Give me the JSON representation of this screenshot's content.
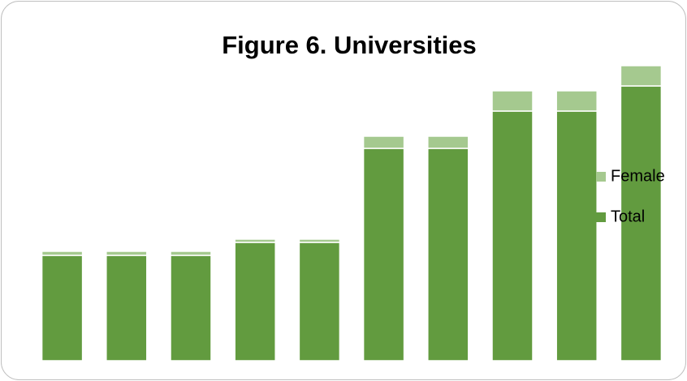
{
  "chart_data": {
    "type": "stacked-bar",
    "title": "Figure 6. Universities",
    "categories": [
      null,
      null,
      null,
      null,
      null,
      null,
      null,
      null,
      null,
      null
    ],
    "series": [
      {
        "name": "Total",
        "color": "#629b3f",
        "values": [
          130,
          130,
          130,
          146,
          146,
          262,
          262,
          308,
          308,
          339
        ]
      },
      {
        "name": "Female",
        "color": "#a5c98f",
        "values": [
          5,
          5,
          5,
          4,
          4,
          15,
          15,
          25,
          25,
          25
        ]
      }
    ],
    "ylim": [
      0,
      370
    ],
    "legend": "right"
  }
}
